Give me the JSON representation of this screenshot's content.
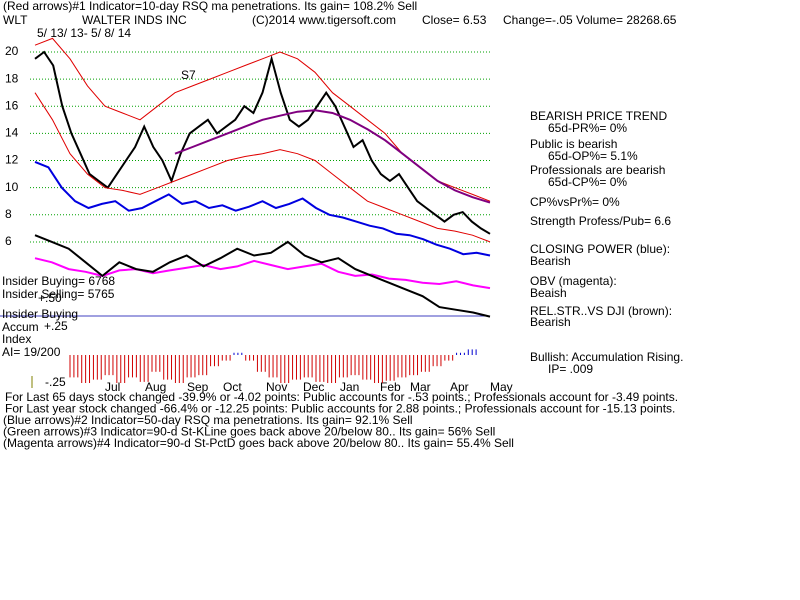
{
  "header": {
    "indicator": "(Red arrows)#1 Indicator=10-day RSQ ma penetrations. Its gain= 108.2% Sell",
    "symbol": "WLT",
    "company": "WALTER INDS INC",
    "copyright": "(C)2014 www.tigersoft.com",
    "close": "Close=  6.53",
    "change": "Change=-.05",
    "volume": "Volume= 28268.65",
    "range": "5/ 13/ 13- 5/ 8/ 14"
  },
  "chart_data": {
    "type": "line",
    "annotation": "S7",
    "month_labels": [
      "Jul",
      "Aug",
      "Sep",
      "Oct",
      "Nov",
      "Dec",
      "Jan",
      "Feb",
      "Mar",
      "Apr",
      "May"
    ],
    "ylim": [
      -2,
      21
    ],
    "yticks": [
      6,
      8,
      10,
      12,
      14,
      16,
      18,
      20
    ],
    "grid": true,
    "series": [
      {
        "color": "#000000",
        "values": [
          19.5,
          20,
          19,
          16,
          14,
          12.5,
          11,
          10.5,
          10,
          11,
          12,
          13,
          14.5,
          13,
          12,
          10.5,
          12.5,
          14,
          14.5,
          15,
          14,
          14.5,
          15,
          16,
          15.5,
          17,
          19.5,
          17,
          15,
          14.5,
          15,
          16,
          17,
          16,
          14.5,
          13,
          13.5,
          12,
          11,
          10.5,
          11,
          10,
          9,
          8.5,
          8,
          7.5,
          8,
          8.2,
          7.5,
          7,
          6.6
        ]
      },
      {
        "color": "#e00000",
        "values": [
          20.5,
          21,
          19.5,
          17.5,
          16,
          15.5,
          15,
          16,
          17,
          17.5,
          18,
          18.5,
          19,
          19.5,
          20,
          19.5,
          18.5,
          17,
          16,
          15,
          14,
          12.5,
          11.5,
          10.5,
          10,
          9.5,
          9
        ]
      },
      {
        "color": "#e00000",
        "values": [
          17,
          15,
          12.5,
          11,
          10,
          9.8,
          9.5,
          10,
          10.5,
          11,
          11.5,
          12,
          12.3,
          12.5,
          12.8,
          12.5,
          12,
          11,
          10,
          9,
          8.5,
          8,
          7.5,
          7,
          6.8,
          6.5,
          6
        ]
      },
      {
        "color": "#800080",
        "values": [
          null,
          null,
          null,
          null,
          null,
          null,
          null,
          null,
          12.5,
          13,
          13.5,
          14,
          14.5,
          15,
          15.3,
          15.6,
          15.7,
          15.5,
          15,
          14.3,
          13.5,
          12.5,
          11.5,
          10.5,
          9.8,
          9.3,
          8.9
        ]
      },
      {
        "color": "#0000e0",
        "values": [
          11.9,
          11.5,
          10,
          9,
          8.5,
          8.8,
          9,
          8.3,
          8.5,
          9,
          9.5,
          8.8,
          9,
          8.5,
          8.7,
          8.3,
          8.6,
          9,
          8.5,
          8.8,
          9.2,
          8.5,
          8,
          7.8,
          7.5,
          7.2,
          7,
          6.6,
          6.5,
          6.2,
          5.8,
          5.5,
          5.1,
          5.2,
          5.0
        ]
      },
      {
        "color": "#ff00ff",
        "values": [
          4.8,
          4.5,
          4.0,
          3.8,
          3.5,
          3.9,
          4.0,
          3.7,
          3.9,
          4.1,
          4.3,
          4.0,
          4.2,
          4.6,
          4.3,
          4.0,
          4.2,
          4.4,
          3.8,
          3.5,
          3.6,
          3.3,
          3.2,
          3.0,
          2.9,
          3.1,
          2.8,
          2.6
        ]
      },
      {
        "color": "#000000",
        "values": [
          6.5,
          6.0,
          5.5,
          4.5,
          3.5,
          4.5,
          4.0,
          3.8,
          4.5,
          5.0,
          4.2,
          4.8,
          5.5,
          5.0,
          5.2,
          6.0,
          5.0,
          4.5,
          4.8,
          4.0,
          3.5,
          3.0,
          2.5,
          2.0,
          1.2,
          1.0,
          0.8,
          0.5
        ]
      }
    ]
  },
  "accum": {
    "yticks": [
      {
        "value": 0.5,
        "label": "+.50"
      },
      {
        "value": 0.25,
        "label": "+.25"
      },
      {
        "value": -0.25,
        "label": "-.25"
      }
    ],
    "values": [
      -0.2,
      -0.25,
      -0.22,
      -0.18,
      -0.25,
      -0.2,
      -0.24,
      -0.15,
      -0.22,
      -0.25,
      -0.2,
      -0.18,
      -0.1,
      -0.05,
      0.02,
      -0.05,
      -0.15,
      -0.2,
      -0.25,
      -0.22,
      -0.2,
      -0.24,
      -0.25,
      -0.2,
      -0.18,
      -0.22,
      -0.25,
      -0.23,
      -0.2,
      -0.18,
      -0.15,
      -0.1,
      -0.05,
      0.02,
      0.05
    ]
  },
  "left": {
    "insider_buying": "Insider Buying= 6768",
    "insider_selling": "Insider Selling= 5765",
    "insider_buying2": "Insider Buying",
    "accum": "Accum",
    "index": "Index",
    "ai": "AI= 19/200"
  },
  "side": [
    "BEARISH PRICE TREND",
    "65d-PR%= 0%",
    "Public is bearish",
    "65d-OP%= 5.1%",
    "Professionals are bearish",
    "65d-CP%= 0%",
    "CP%vsPr%=  0%",
    "Strength Profess/Pub= 6.6",
    "CLOSING POWER (blue):",
    "Bearish",
    "OBV (magenta):",
    "Beaish",
    "REL.STR..VS DJI (brown):",
    "Bearish",
    "Bullish: Accumulation Rising.",
    "IP=  .009"
  ],
  "footer": [
    "For Last 65 days stock changed -39.9% or -4.02 points:  Public accounts for -.53 points.;  Professionals account for -3.49 points.",
    "For Last year stock changed -66.4% or -12.25 points:  Public accounts for  2.88 points.;  Professionals account for -15.13 points.",
    "(Blue arrows)#2 Indicator=50-day RSQ ma penetrations.  Its gain= 92.1% Sell",
    "(Green arrows)#3 Indicator=90-d St-KLine goes back above 20/below 80.. Its gain= 56% Sell",
    "(Magenta arrows)#4 Indicator=90-d St-PctD goes back above 20/below 80.. Its gain= 55.4% Sell"
  ]
}
